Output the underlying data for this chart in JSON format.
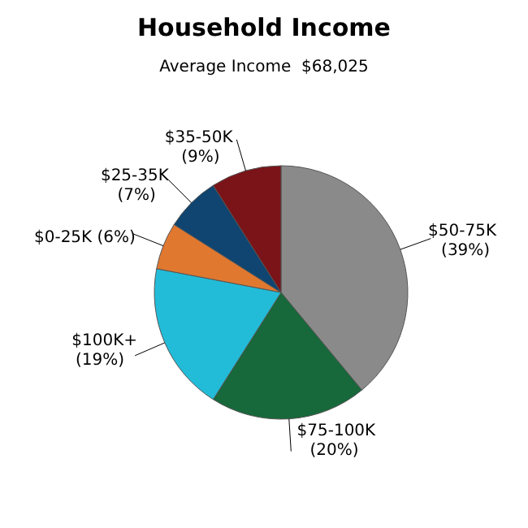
{
  "chart_data": {
    "type": "pie",
    "title": "Household Income",
    "subtitle": "Average Income  $68,025",
    "categories": [
      "$50-75K",
      "$75-100K",
      "$100K+",
      "$0-25K (6%)",
      "$25-35K",
      "$35-50K"
    ],
    "values": [
      39,
      20,
      19,
      6,
      7,
      9
    ],
    "value_labels": [
      "(39%)",
      "(20%)",
      "(19%)",
      null,
      "(7%)",
      "(9%)"
    ],
    "colors": [
      "#8a8a8a",
      "#17683a",
      "#22bcd8",
      "#e07830",
      "#0f4570",
      "#7a1418"
    ]
  }
}
